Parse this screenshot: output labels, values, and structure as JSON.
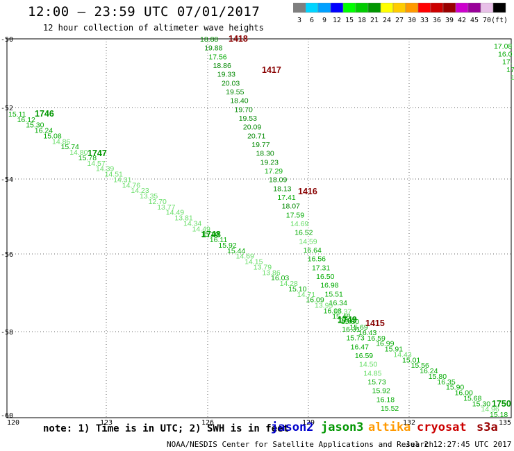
{
  "header": {
    "title": "12:00 — 23:59 UTC 07/01/2017",
    "subtitle": "12 hour collection of altimeter wave heights"
  },
  "scale": {
    "colors": [
      "#7f7f7f",
      "#00d4ff",
      "#00a0ff",
      "#0000ff",
      "#00ff00",
      "#00cc00",
      "#009600",
      "#ffff00",
      "#ffcc00",
      "#ff9900",
      "#ff0000",
      "#cc0000",
      "#990000",
      "#cc00cc",
      "#990099",
      "#e8c0e8",
      "#000000"
    ],
    "labels": [
      "3",
      "6",
      "9",
      "12",
      "15",
      "18",
      "21",
      "24",
      "27",
      "30",
      "33",
      "36",
      "39",
      "42",
      "45",
      "70",
      "(ft)"
    ]
  },
  "axes": {
    "lat_ticks": [
      "-50",
      "-52",
      "-54",
      "-56",
      "-58",
      "-60"
    ],
    "lon_ticks": [
      "120",
      "123",
      "126",
      "129",
      "132",
      "135"
    ]
  },
  "tracks": {
    "jason3_a": {
      "values": [
        "15.11",
        "16.12",
        "15.30",
        "16.24",
        "15.08",
        "14.86",
        "15.74",
        "14.80",
        "15.78",
        "14.57",
        "14.39",
        "14.51",
        "14.31",
        "14.76",
        "14.23",
        "13.35",
        "12.70",
        "13.77",
        "14.49",
        "13.81",
        "14.34",
        "14.49",
        "15.20",
        "16.11",
        "15.92",
        "15.44",
        "14.69",
        "14.15",
        "13.79",
        "13.86",
        "16.03",
        "14.28",
        "15.10",
        "14.71",
        "16.09",
        "13.95",
        "16.08",
        "15.48",
        "15.80",
        "15.69",
        "16.43",
        "16.59",
        "16.99",
        "15.91",
        "14.43",
        "15.01",
        "15.56",
        "16.24",
        "15.80",
        "16.35",
        "15.90",
        "16.00",
        "15.68",
        "15.30",
        "14.96",
        "15.18"
      ],
      "times": [
        "1746",
        "1747",
        "1748",
        "1749",
        "1750"
      ]
    },
    "cryosat": {
      "values": [
        "18.88",
        "19.88",
        "17.56",
        "18.86",
        "19.33",
        "20.03",
        "19.55",
        "18.40",
        "19.70",
        "19.53",
        "20.09",
        "20.71",
        "19.77",
        "18.30",
        "19.23",
        "17.29",
        "18.09",
        "18.13",
        "17.41",
        "18.07",
        "17.59",
        "14.69",
        "16.52",
        "14.59",
        "16.64",
        "16.56",
        "17.31",
        "16.50",
        "16.98",
        "15.51",
        "16.34",
        "14.37",
        "15.37",
        "16.31",
        "15.73",
        "16.47",
        "16.59",
        "14.50",
        "14.85",
        "15.73",
        "15.92",
        "16.18",
        "15.52"
      ],
      "times": [
        "1418",
        "1417",
        "1416",
        "1415"
      ]
    },
    "jason3_b": {
      "values": [
        "17.08",
        "16.0",
        "17.",
        "17",
        "1"
      ]
    }
  },
  "footer": {
    "note": "note: 1) Time is in UTC; 2) SWH is in feet",
    "sats": [
      "jason2",
      "jason3",
      "altika",
      "cryosat",
      "s3a"
    ],
    "sat_colors": [
      "#0000cc",
      "#009600",
      "#ff9900",
      "#cc0000",
      "#990000"
    ],
    "credit": "NOAA/NESDIS Center for Satellite Applications and Research",
    "stamp": "Jul  2 12:27:45 UTC 2017"
  }
}
